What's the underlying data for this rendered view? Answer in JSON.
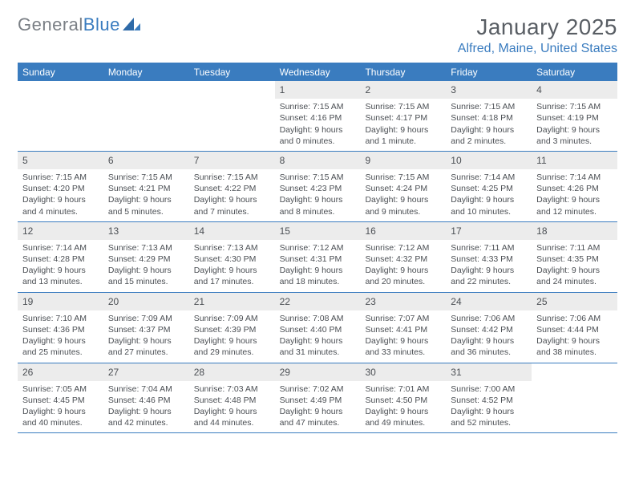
{
  "brand": {
    "part1": "General",
    "part2": "Blue"
  },
  "title": "January 2025",
  "location": "Alfred, Maine, United States",
  "colors": {
    "header_bg": "#3a7cbf",
    "header_text": "#ffffff",
    "daynum_bg": "#ececec",
    "text": "#4b4f54",
    "title_text": "#595e64",
    "location_text": "#3a7cbf",
    "row_divider": "#3a7cbf",
    "logo_gray": "#7a7f85",
    "logo_blue": "#3a7cbf"
  },
  "typography": {
    "title_fontsize": 28,
    "location_fontsize": 16,
    "weekday_fontsize": 12,
    "daynum_fontsize": 12,
    "body_fontsize": 10.5
  },
  "weekdays": [
    "Sunday",
    "Monday",
    "Tuesday",
    "Wednesday",
    "Thursday",
    "Friday",
    "Saturday"
  ],
  "weeks": [
    [
      {
        "n": "",
        "sr": "",
        "ss": "",
        "d1": "",
        "d2": ""
      },
      {
        "n": "",
        "sr": "",
        "ss": "",
        "d1": "",
        "d2": ""
      },
      {
        "n": "",
        "sr": "",
        "ss": "",
        "d1": "",
        "d2": ""
      },
      {
        "n": "1",
        "sr": "Sunrise: 7:15 AM",
        "ss": "Sunset: 4:16 PM",
        "d1": "Daylight: 9 hours",
        "d2": "and 0 minutes."
      },
      {
        "n": "2",
        "sr": "Sunrise: 7:15 AM",
        "ss": "Sunset: 4:17 PM",
        "d1": "Daylight: 9 hours",
        "d2": "and 1 minute."
      },
      {
        "n": "3",
        "sr": "Sunrise: 7:15 AM",
        "ss": "Sunset: 4:18 PM",
        "d1": "Daylight: 9 hours",
        "d2": "and 2 minutes."
      },
      {
        "n": "4",
        "sr": "Sunrise: 7:15 AM",
        "ss": "Sunset: 4:19 PM",
        "d1": "Daylight: 9 hours",
        "d2": "and 3 minutes."
      }
    ],
    [
      {
        "n": "5",
        "sr": "Sunrise: 7:15 AM",
        "ss": "Sunset: 4:20 PM",
        "d1": "Daylight: 9 hours",
        "d2": "and 4 minutes."
      },
      {
        "n": "6",
        "sr": "Sunrise: 7:15 AM",
        "ss": "Sunset: 4:21 PM",
        "d1": "Daylight: 9 hours",
        "d2": "and 5 minutes."
      },
      {
        "n": "7",
        "sr": "Sunrise: 7:15 AM",
        "ss": "Sunset: 4:22 PM",
        "d1": "Daylight: 9 hours",
        "d2": "and 7 minutes."
      },
      {
        "n": "8",
        "sr": "Sunrise: 7:15 AM",
        "ss": "Sunset: 4:23 PM",
        "d1": "Daylight: 9 hours",
        "d2": "and 8 minutes."
      },
      {
        "n": "9",
        "sr": "Sunrise: 7:15 AM",
        "ss": "Sunset: 4:24 PM",
        "d1": "Daylight: 9 hours",
        "d2": "and 9 minutes."
      },
      {
        "n": "10",
        "sr": "Sunrise: 7:14 AM",
        "ss": "Sunset: 4:25 PM",
        "d1": "Daylight: 9 hours",
        "d2": "and 10 minutes."
      },
      {
        "n": "11",
        "sr": "Sunrise: 7:14 AM",
        "ss": "Sunset: 4:26 PM",
        "d1": "Daylight: 9 hours",
        "d2": "and 12 minutes."
      }
    ],
    [
      {
        "n": "12",
        "sr": "Sunrise: 7:14 AM",
        "ss": "Sunset: 4:28 PM",
        "d1": "Daylight: 9 hours",
        "d2": "and 13 minutes."
      },
      {
        "n": "13",
        "sr": "Sunrise: 7:13 AM",
        "ss": "Sunset: 4:29 PM",
        "d1": "Daylight: 9 hours",
        "d2": "and 15 minutes."
      },
      {
        "n": "14",
        "sr": "Sunrise: 7:13 AM",
        "ss": "Sunset: 4:30 PM",
        "d1": "Daylight: 9 hours",
        "d2": "and 17 minutes."
      },
      {
        "n": "15",
        "sr": "Sunrise: 7:12 AM",
        "ss": "Sunset: 4:31 PM",
        "d1": "Daylight: 9 hours",
        "d2": "and 18 minutes."
      },
      {
        "n": "16",
        "sr": "Sunrise: 7:12 AM",
        "ss": "Sunset: 4:32 PM",
        "d1": "Daylight: 9 hours",
        "d2": "and 20 minutes."
      },
      {
        "n": "17",
        "sr": "Sunrise: 7:11 AM",
        "ss": "Sunset: 4:33 PM",
        "d1": "Daylight: 9 hours",
        "d2": "and 22 minutes."
      },
      {
        "n": "18",
        "sr": "Sunrise: 7:11 AM",
        "ss": "Sunset: 4:35 PM",
        "d1": "Daylight: 9 hours",
        "d2": "and 24 minutes."
      }
    ],
    [
      {
        "n": "19",
        "sr": "Sunrise: 7:10 AM",
        "ss": "Sunset: 4:36 PM",
        "d1": "Daylight: 9 hours",
        "d2": "and 25 minutes."
      },
      {
        "n": "20",
        "sr": "Sunrise: 7:09 AM",
        "ss": "Sunset: 4:37 PM",
        "d1": "Daylight: 9 hours",
        "d2": "and 27 minutes."
      },
      {
        "n": "21",
        "sr": "Sunrise: 7:09 AM",
        "ss": "Sunset: 4:39 PM",
        "d1": "Daylight: 9 hours",
        "d2": "and 29 minutes."
      },
      {
        "n": "22",
        "sr": "Sunrise: 7:08 AM",
        "ss": "Sunset: 4:40 PM",
        "d1": "Daylight: 9 hours",
        "d2": "and 31 minutes."
      },
      {
        "n": "23",
        "sr": "Sunrise: 7:07 AM",
        "ss": "Sunset: 4:41 PM",
        "d1": "Daylight: 9 hours",
        "d2": "and 33 minutes."
      },
      {
        "n": "24",
        "sr": "Sunrise: 7:06 AM",
        "ss": "Sunset: 4:42 PM",
        "d1": "Daylight: 9 hours",
        "d2": "and 36 minutes."
      },
      {
        "n": "25",
        "sr": "Sunrise: 7:06 AM",
        "ss": "Sunset: 4:44 PM",
        "d1": "Daylight: 9 hours",
        "d2": "and 38 minutes."
      }
    ],
    [
      {
        "n": "26",
        "sr": "Sunrise: 7:05 AM",
        "ss": "Sunset: 4:45 PM",
        "d1": "Daylight: 9 hours",
        "d2": "and 40 minutes."
      },
      {
        "n": "27",
        "sr": "Sunrise: 7:04 AM",
        "ss": "Sunset: 4:46 PM",
        "d1": "Daylight: 9 hours",
        "d2": "and 42 minutes."
      },
      {
        "n": "28",
        "sr": "Sunrise: 7:03 AM",
        "ss": "Sunset: 4:48 PM",
        "d1": "Daylight: 9 hours",
        "d2": "and 44 minutes."
      },
      {
        "n": "29",
        "sr": "Sunrise: 7:02 AM",
        "ss": "Sunset: 4:49 PM",
        "d1": "Daylight: 9 hours",
        "d2": "and 47 minutes."
      },
      {
        "n": "30",
        "sr": "Sunrise: 7:01 AM",
        "ss": "Sunset: 4:50 PM",
        "d1": "Daylight: 9 hours",
        "d2": "and 49 minutes."
      },
      {
        "n": "31",
        "sr": "Sunrise: 7:00 AM",
        "ss": "Sunset: 4:52 PM",
        "d1": "Daylight: 9 hours",
        "d2": "and 52 minutes."
      },
      {
        "n": "",
        "sr": "",
        "ss": "",
        "d1": "",
        "d2": ""
      }
    ]
  ]
}
